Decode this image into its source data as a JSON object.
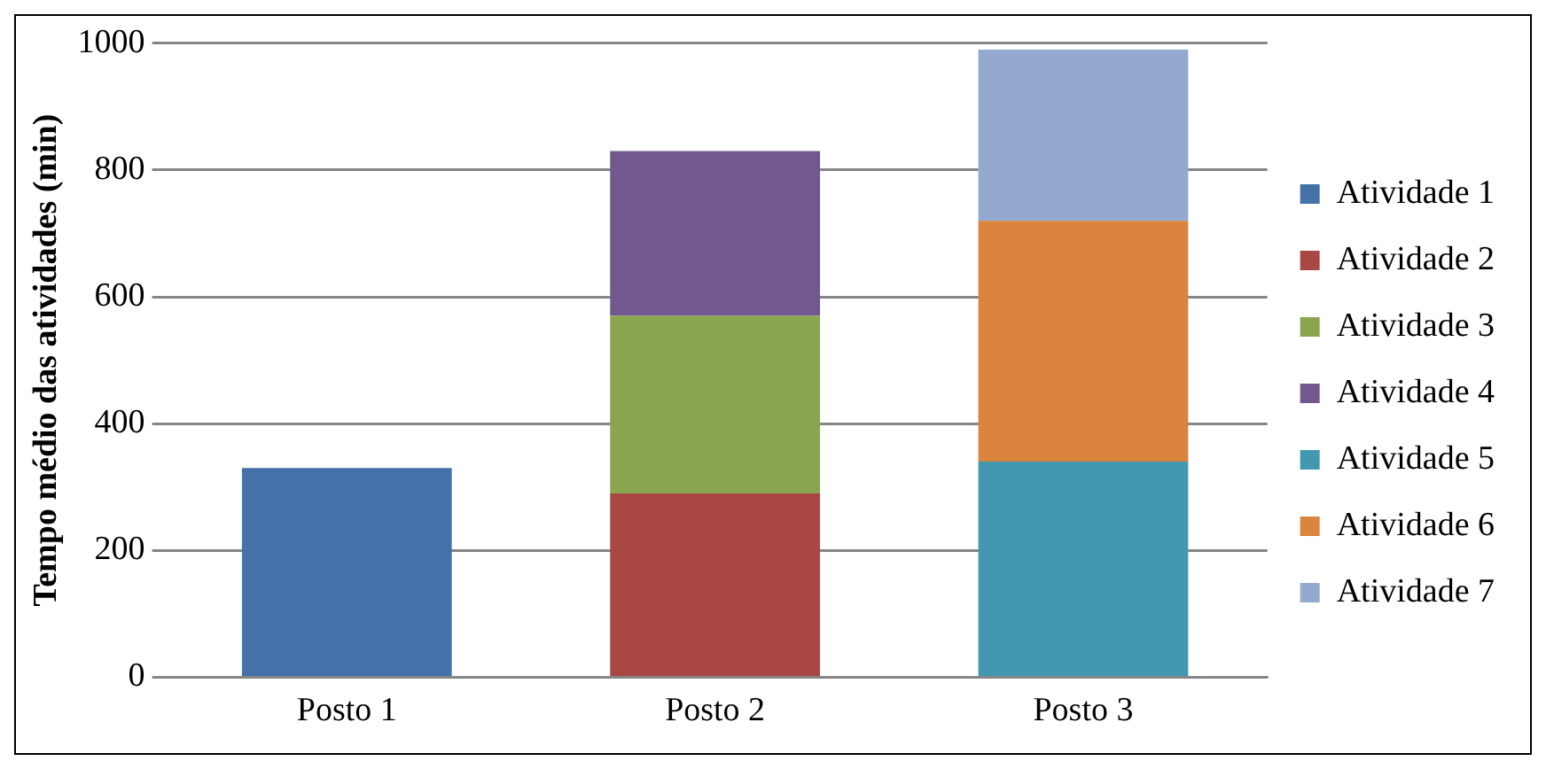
{
  "chart_data": {
    "type": "bar",
    "ylabel": "Tempo médio das atividades (min)",
    "categories": [
      "Posto 1",
      "Posto 2",
      "Posto 3"
    ],
    "stacked": true,
    "ylim": [
      0,
      1000
    ],
    "yticks": [
      0,
      200,
      400,
      600,
      800,
      1000
    ],
    "grid": "y",
    "legend": "right",
    "series": [
      {
        "name": "Atividade 1",
        "color": "#4472a8",
        "values": [
          330,
          null,
          null
        ]
      },
      {
        "name": "Atividade 2",
        "color": "#a94745",
        "values": [
          null,
          290,
          null
        ]
      },
      {
        "name": "Atividade 3",
        "color": "#89a54e",
        "values": [
          null,
          280,
          null
        ]
      },
      {
        "name": "Atividade 4",
        "color": "#71588f",
        "values": [
          null,
          260,
          null
        ]
      },
      {
        "name": "Atividade 5",
        "color": "#4198af",
        "values": [
          null,
          null,
          340
        ]
      },
      {
        "name": "Atividade 6",
        "color": "#db843d",
        "values": [
          null,
          null,
          380
        ]
      },
      {
        "name": "Atividade 7",
        "color": "#93a9cf",
        "values": [
          null,
          null,
          270
        ]
      }
    ]
  }
}
